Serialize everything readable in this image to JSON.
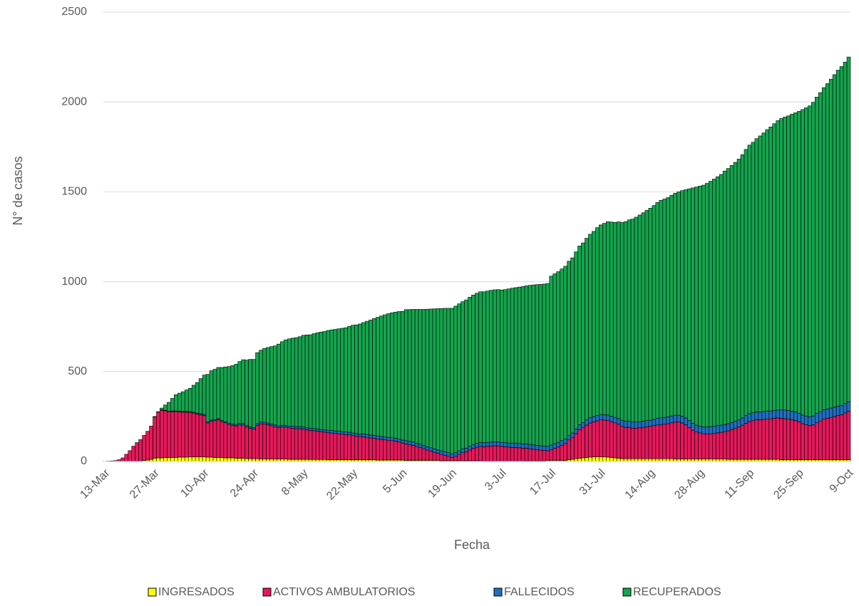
{
  "chart_data": {
    "type": "stacked_bar",
    "x_label": "Fecha",
    "y_label": "N° de casos",
    "ylim": [
      0,
      2500
    ],
    "yticks": [
      0,
      500,
      1000,
      1500,
      2000,
      2500
    ],
    "grid": true,
    "legend": "bottom",
    "categories": [
      "13-Mar",
      null,
      null,
      null,
      null,
      null,
      null,
      null,
      null,
      null,
      null,
      null,
      null,
      null,
      "27-Mar",
      null,
      null,
      null,
      null,
      null,
      null,
      null,
      null,
      null,
      null,
      null,
      null,
      null,
      "10-Apr",
      null,
      null,
      null,
      null,
      null,
      null,
      null,
      null,
      null,
      null,
      null,
      null,
      null,
      "24-Apr",
      null,
      null,
      null,
      null,
      null,
      null,
      null,
      null,
      null,
      null,
      null,
      null,
      null,
      "8-May",
      null,
      null,
      null,
      null,
      null,
      null,
      null,
      null,
      null,
      null,
      null,
      null,
      null,
      "22-May",
      null,
      null,
      null,
      null,
      null,
      null,
      null,
      null,
      null,
      null,
      null,
      null,
      null,
      "5-Jun",
      null,
      null,
      null,
      null,
      null,
      null,
      null,
      null,
      null,
      null,
      null,
      null,
      null,
      "19-Jun",
      null,
      null,
      null,
      null,
      null,
      null,
      null,
      null,
      null,
      null,
      null,
      null,
      null,
      "3-Jul",
      null,
      null,
      null,
      null,
      null,
      null,
      null,
      null,
      null,
      null,
      null,
      null,
      null,
      "17-Jul",
      null,
      null,
      null,
      null,
      null,
      null,
      null,
      null,
      null,
      null,
      null,
      null,
      null,
      "31-Jul",
      null,
      null,
      null,
      null,
      null,
      null,
      null,
      null,
      null,
      null,
      null,
      null,
      null,
      "14-Aug",
      null,
      null,
      null,
      null,
      null,
      null,
      null,
      null,
      null,
      null,
      null,
      null,
      null,
      "28-Aug",
      null,
      null,
      null,
      null,
      null,
      null,
      null,
      null,
      null,
      null,
      null,
      null,
      null,
      "11-Sep",
      null,
      null,
      null,
      null,
      null,
      null,
      null,
      null,
      null,
      null,
      null,
      null,
      null,
      "25-Sep",
      null,
      null,
      null,
      null,
      null,
      null,
      null,
      null,
      null,
      null,
      null,
      null,
      null,
      "9-Oct"
    ],
    "series": [
      {
        "name": "INGRESADOS",
        "color": "#ffff00",
        "values": [
          0,
          0,
          0,
          0,
          0,
          0,
          0,
          0,
          0,
          0,
          2,
          5,
          8,
          12,
          18,
          20,
          20,
          22,
          22,
          22,
          22,
          24,
          24,
          24,
          25,
          25,
          25,
          25,
          25,
          24,
          24,
          22,
          22,
          22,
          20,
          20,
          20,
          18,
          18,
          18,
          16,
          15,
          15,
          15,
          14,
          14,
          14,
          14,
          13,
          13,
          13,
          13,
          12,
          12,
          12,
          12,
          12,
          12,
          11,
          11,
          11,
          11,
          11,
          10,
          10,
          10,
          10,
          10,
          10,
          10,
          9,
          9,
          9,
          9,
          9,
          9,
          9,
          8,
          8,
          8,
          8,
          8,
          8,
          8,
          8,
          6,
          6,
          6,
          6,
          6,
          6,
          6,
          6,
          6,
          6,
          4,
          4,
          4,
          4,
          4,
          4,
          4,
          4,
          4,
          4,
          4,
          4,
          2,
          2,
          2,
          2,
          2,
          2,
          2,
          2,
          2,
          2,
          2,
          2,
          3,
          3,
          3,
          3,
          3,
          3,
          5,
          5,
          5,
          5,
          5,
          5,
          10,
          12,
          15,
          18,
          20,
          22,
          24,
          25,
          26,
          26,
          25,
          24,
          22,
          20,
          18,
          15,
          15,
          15,
          15,
          15,
          15,
          15,
          15,
          15,
          15,
          15,
          15,
          15,
          15,
          15,
          14,
          14,
          14,
          14,
          14,
          14,
          14,
          14,
          14,
          14,
          14,
          14,
          14,
          14,
          14,
          12,
          12,
          12,
          12,
          12,
          12,
          12,
          12,
          12,
          12,
          12,
          12,
          12,
          12,
          12,
          10,
          10,
          10,
          10,
          10,
          10,
          10,
          10,
          10,
          10,
          10,
          10,
          10,
          10,
          10,
          10,
          10,
          10,
          10,
          10
        ]
      },
      {
        "name": "ACTIVOS AMBULATORIOS",
        "color": "#e6185a",
        "values": [
          1,
          2,
          3,
          5,
          10,
          20,
          40,
          60,
          85,
          105,
          120,
          140,
          160,
          185,
          230,
          255,
          265,
          260,
          255,
          255,
          255,
          252,
          250,
          250,
          248,
          245,
          240,
          235,
          230,
          190,
          200,
          205,
          210,
          200,
          195,
          185,
          180,
          180,
          185,
          185,
          175,
          170,
          165,
          185,
          195,
          195,
          190,
          185,
          180,
          175,
          178,
          178,
          175,
          172,
          170,
          170,
          168,
          165,
          162,
          160,
          158,
          155,
          152,
          150,
          148,
          146,
          144,
          142,
          140,
          138,
          135,
          132,
          130,
          128,
          125,
          122,
          120,
          118,
          115,
          112,
          110,
          108,
          105,
          100,
          95,
          92,
          88,
          84,
          78,
          72,
          65,
          58,
          52,
          45,
          40,
          35,
          30,
          25,
          18,
          25,
          35,
          45,
          50,
          60,
          70,
          75,
          80,
          80,
          82,
          84,
          85,
          85,
          82,
          80,
          78,
          76,
          75,
          74,
          72,
          70,
          68,
          65,
          62,
          60,
          58,
          55,
          60,
          68,
          75,
          85,
          95,
          110,
          120,
          140,
          160,
          170,
          180,
          190,
          195,
          200,
          205,
          205,
          205,
          200,
          195,
          190,
          180,
          175,
          175,
          170,
          170,
          172,
          175,
          178,
          180,
          185,
          188,
          190,
          192,
          195,
          200,
          205,
          205,
          200,
          190,
          175,
          160,
          150,
          145,
          140,
          140,
          140,
          142,
          145,
          148,
          152,
          158,
          165,
          172,
          180,
          190,
          200,
          210,
          215,
          220,
          220,
          222,
          225,
          225,
          228,
          230,
          230,
          228,
          225,
          222,
          218,
          210,
          200,
          195,
          190,
          195,
          205,
          215,
          225,
          230,
          235,
          240,
          245,
          250,
          260,
          270
        ]
      },
      {
        "name": "FALLECIDOS",
        "color": "#1f6fc0",
        "values": [
          0,
          0,
          0,
          0,
          0,
          0,
          0,
          0,
          0,
          0,
          0,
          0,
          0,
          0,
          2,
          2,
          2,
          2,
          2,
          4,
          4,
          4,
          4,
          4,
          4,
          4,
          4,
          6,
          6,
          6,
          6,
          6,
          6,
          6,
          6,
          8,
          8,
          8,
          8,
          8,
          8,
          8,
          8,
          10,
          10,
          10,
          10,
          10,
          10,
          10,
          10,
          10,
          10,
          12,
          12,
          12,
          12,
          12,
          12,
          12,
          12,
          12,
          12,
          14,
          14,
          14,
          14,
          14,
          14,
          14,
          14,
          14,
          14,
          16,
          16,
          16,
          16,
          16,
          16,
          16,
          16,
          16,
          16,
          16,
          16,
          18,
          18,
          18,
          18,
          18,
          18,
          18,
          18,
          18,
          18,
          20,
          20,
          20,
          20,
          20,
          20,
          20,
          20,
          20,
          20,
          22,
          22,
          22,
          22,
          22,
          22,
          22,
          22,
          22,
          22,
          24,
          24,
          24,
          24,
          24,
          24,
          24,
          24,
          24,
          24,
          24,
          26,
          26,
          26,
          26,
          26,
          26,
          26,
          26,
          26,
          26,
          30,
          30,
          30,
          30,
          30,
          30,
          30,
          30,
          30,
          30,
          34,
          34,
          34,
          34,
          34,
          34,
          34,
          34,
          34,
          34,
          38,
          38,
          38,
          38,
          38,
          38,
          38,
          38,
          38,
          38,
          38,
          38,
          38,
          38,
          38,
          40,
          40,
          40,
          40,
          40,
          40,
          40,
          40,
          40,
          40,
          44,
          44,
          44,
          44,
          44,
          44,
          44,
          44,
          44,
          44,
          48,
          48,
          48,
          48,
          48,
          48,
          48,
          48,
          48,
          48,
          52,
          52,
          52,
          52,
          52,
          52,
          52,
          52,
          52,
          52
        ]
      },
      {
        "name": "RECUPERADOS",
        "color": "#14a44d",
        "values": [
          0,
          0,
          0,
          0,
          0,
          0,
          0,
          0,
          0,
          0,
          0,
          0,
          0,
          0,
          0,
          0,
          10,
          30,
          50,
          70,
          90,
          100,
          110,
          120,
          130,
          150,
          170,
          195,
          220,
          265,
          275,
          280,
          285,
          295,
          305,
          315,
          325,
          335,
          345,
          355,
          365,
          375,
          380,
          395,
          400,
          410,
          420,
          430,
          440,
          455,
          465,
          475,
          485,
          490,
          495,
          500,
          510,
          515,
          520,
          528,
          535,
          542,
          548,
          555,
          560,
          565,
          570,
          575,
          580,
          590,
          600,
          605,
          612,
          620,
          630,
          640,
          650,
          660,
          670,
          680,
          688,
          695,
          702,
          710,
          716,
          729,
          733,
          738,
          744,
          750,
          757,
          765,
          772,
          780,
          786,
          792,
          798,
          803,
          810,
          815,
          818,
          820,
          825,
          830,
          832,
          835,
          838,
          840,
          842,
          844,
          846,
          847,
          848,
          852,
          858,
          862,
          866,
          870,
          875,
          880,
          885,
          890,
          895,
          898,
          902,
          906,
          940,
          945,
          950,
          955,
          960,
          968,
          975,
          985,
          995,
          1000,
          1010,
          1020,
          1030,
          1045,
          1055,
          1065,
          1075,
          1080,
          1085,
          1095,
          1100,
          1110,
          1120,
          1130,
          1140,
          1150,
          1160,
          1170,
          1180,
          1190,
          1200,
          1210,
          1215,
          1220,
          1228,
          1235,
          1243,
          1255,
          1270,
          1290,
          1310,
          1325,
          1335,
          1345,
          1355,
          1365,
          1375,
          1385,
          1395,
          1410,
          1420,
          1430,
          1440,
          1450,
          1465,
          1480,
          1494,
          1505,
          1520,
          1535,
          1550,
          1565,
          1580,
          1595,
          1610,
          1620,
          1630,
          1640,
          1652,
          1664,
          1680,
          1700,
          1715,
          1730,
          1745,
          1760,
          1775,
          1793,
          1810,
          1830,
          1850,
          1870,
          1885,
          1900,
          1918
        ]
      }
    ]
  }
}
